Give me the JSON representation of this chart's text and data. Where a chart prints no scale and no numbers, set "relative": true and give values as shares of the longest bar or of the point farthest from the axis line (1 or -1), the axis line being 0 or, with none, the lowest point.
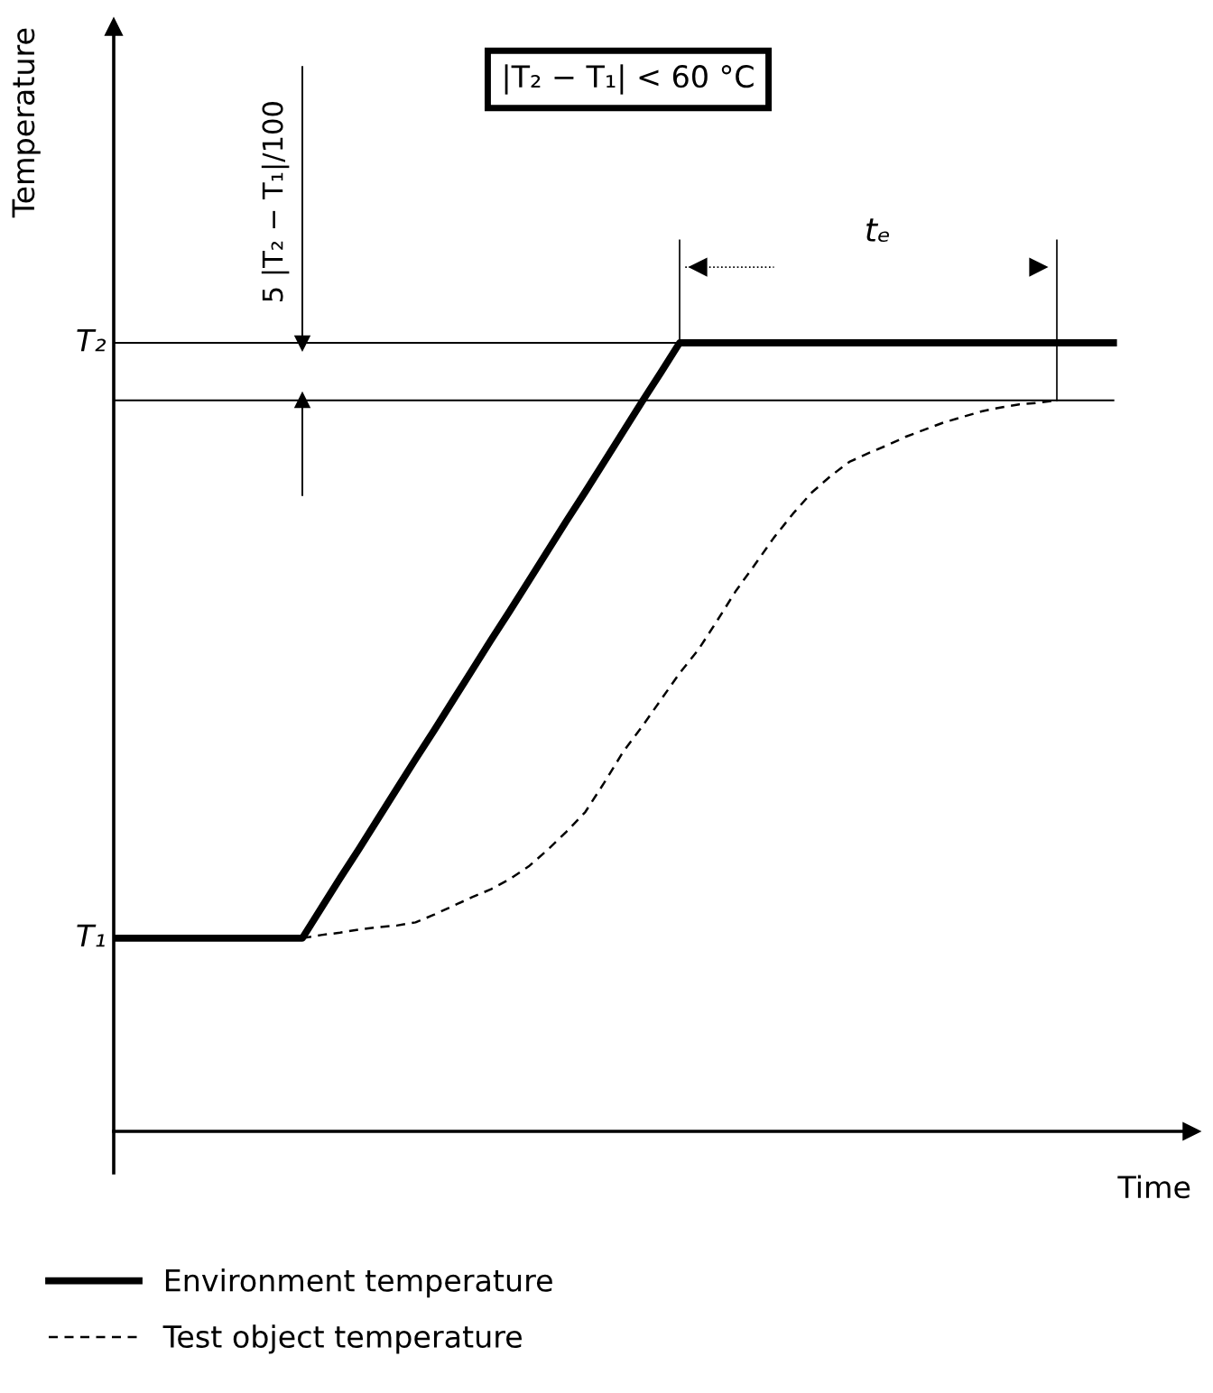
{
  "chart_data": {
    "type": "line",
    "relative": true,
    "xlabel": "Time",
    "ylabel": "Temperature",
    "legend": "bottom",
    "categories": [
      null,
      null,
      null,
      null,
      null,
      null,
      null,
      null,
      null,
      null,
      null,
      null,
      null,
      null,
      null,
      null,
      null,
      null,
      null,
      null,
      null,
      null,
      null,
      null,
      null,
      null,
      null,
      null,
      null,
      null,
      null,
      null,
      null,
      null,
      null,
      null,
      null,
      null,
      null,
      null,
      null,
      null,
      null,
      null,
      null,
      null,
      null,
      null,
      null,
      null,
      null,
      null,
      null,
      null
    ],
    "series": [
      {
        "name": "Environment temperature",
        "color": "#000000",
        "line_style": "solid",
        "values": [
          0.245,
          0.245,
          0.245,
          0.245,
          0.245,
          0.245,
          0.245,
          0.245,
          0.245,
          0.245,
          0.245,
          0.283,
          0.321,
          0.358,
          0.396,
          0.434,
          0.472,
          0.509,
          0.547,
          0.585,
          0.623,
          0.66,
          0.698,
          0.736,
          0.774,
          0.811,
          0.849,
          0.887,
          0.925,
          0.962,
          1,
          1,
          1,
          1,
          1,
          1,
          1,
          1,
          1,
          1,
          1,
          1,
          1,
          1,
          1,
          1,
          1,
          1,
          1,
          1,
          1,
          1,
          1,
          1
        ]
      },
      {
        "name": "Test object temperature",
        "color": "#000000",
        "line_style": "dashed",
        "values": [
          null,
          null,
          null,
          null,
          null,
          null,
          null,
          null,
          null,
          null,
          0.245,
          0.249,
          0.252,
          0.256,
          0.259,
          0.261,
          0.265,
          0.275,
          0.286,
          0.297,
          0.307,
          0.32,
          0.336,
          0.357,
          0.38,
          0.405,
          0.442,
          0.481,
          0.513,
          0.547,
          0.581,
          0.611,
          0.648,
          0.686,
          0.719,
          0.753,
          0.783,
          0.81,
          0.831,
          0.849,
          0.86,
          0.87,
          0.881,
          0.89,
          0.899,
          0.906,
          0.913,
          0.918,
          0.922,
          0.924,
          0.927,
          null,
          null,
          null
        ]
      }
    ],
    "ref_lines": [
      {
        "axis": "y",
        "value": 1,
        "label": "T₂"
      },
      {
        "axis": "y",
        "value": 0.927
      }
    ],
    "annotations": [
      "|T₂ − T₁| < 60 °C",
      "T₁",
      "tₑ",
      "5 |T₂ − T₁|/100"
    ]
  }
}
